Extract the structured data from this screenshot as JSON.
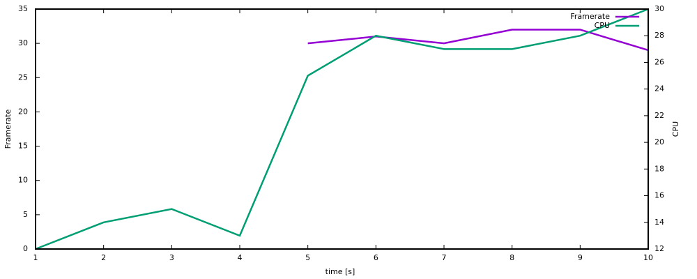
{
  "chart_data": {
    "type": "line",
    "x_label": "time [s]",
    "y_label": "Framerate",
    "y2_label": "CPU",
    "x": [
      1,
      2,
      3,
      4,
      5,
      6,
      7,
      8,
      9,
      10
    ],
    "series": [
      {
        "name": "Framerate",
        "color": "#9400d3",
        "values": [
          null,
          null,
          null,
          null,
          30,
          31,
          30,
          32,
          32,
          29
        ]
      },
      {
        "name": "CPU",
        "color": "#009e73",
        "axis": "y2",
        "values": [
          12,
          14,
          15,
          13,
          25,
          28,
          27,
          27,
          28,
          30
        ]
      }
    ],
    "xlim": [
      1,
      10
    ],
    "xticks": [
      1,
      2,
      3,
      4,
      5,
      6,
      7,
      8,
      9,
      10
    ],
    "ylim": [
      0,
      35
    ],
    "yticks": [
      0,
      5,
      10,
      15,
      20,
      25,
      30,
      35
    ],
    "y2lim": [
      12,
      30
    ],
    "y2ticks": [
      12,
      14,
      16,
      18,
      20,
      22,
      24,
      26,
      28,
      30
    ],
    "legend": "top-right"
  }
}
